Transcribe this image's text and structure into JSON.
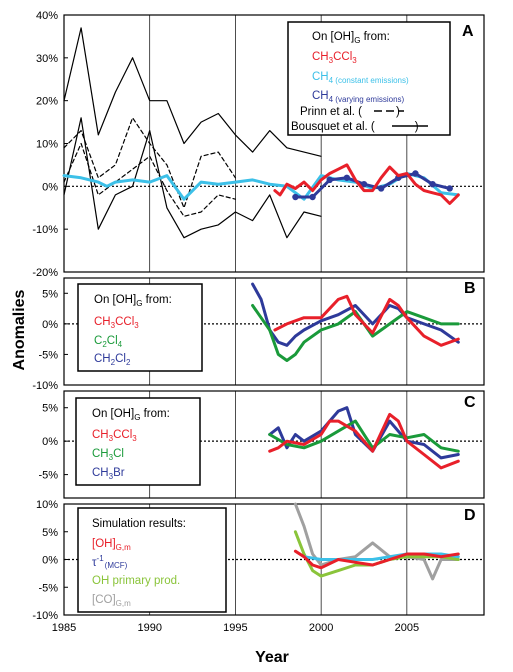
{
  "x_axis": {
    "label": "Year",
    "ticks": [
      "1985",
      "1990",
      "1995",
      "2000",
      "2005"
    ]
  },
  "y_axis": {
    "label": "Anomalies"
  },
  "colors": {
    "ch3ccl3": "#e8202a",
    "ch4_const": "#3cc0e8",
    "ch4_vary": "#2e3a9a",
    "c2cl4": "#1a9a3a",
    "ch3cl": "#1a9a3a",
    "ch2cl2": "#2e3a9a",
    "ch3br": "#2e3a9a",
    "oh_sim": "#e8202a",
    "tau_mcf": "#3cc0e8",
    "oh_primary": "#8ac43a",
    "co_sim": "#a0a0a0",
    "prinn": "#000000",
    "bousquet": "#000000"
  },
  "chart_data": [
    {
      "panel": "A",
      "type": "line",
      "ylim": [
        -20,
        40
      ],
      "y_ticks": [
        "40%",
        "30%",
        "20%",
        "10%",
        "0%",
        "-10%",
        "-20%"
      ],
      "legend": {
        "title": "On [OH]G from:",
        "entries": [
          "CH3CCl3",
          "CH4 (constant emissions)",
          "CH4 (varying emissions)",
          "Prinn et al.",
          "Bousquet et al."
        ]
      },
      "series": [
        {
          "name": "Bousquet et al. upper",
          "x": [
            1985,
            1986,
            1987,
            1988,
            1989,
            1990,
            1991,
            1992,
            1993,
            1994,
            1995,
            1996,
            1997,
            1998,
            1999,
            2000
          ],
          "y": [
            20,
            37,
            12,
            22,
            30,
            20,
            20,
            10,
            15,
            17,
            12,
            8,
            13,
            9,
            8,
            7
          ]
        },
        {
          "name": "Bousquet et al. lower",
          "x": [
            1985,
            1986,
            1987,
            1988,
            1989,
            1990,
            1991,
            1992,
            1993,
            1994,
            1995,
            1996,
            1997,
            1998,
            1999,
            2000
          ],
          "y": [
            -2,
            16,
            -10,
            -2,
            0,
            13,
            -5,
            -12,
            -10,
            -9,
            -6,
            -8,
            -2,
            -12,
            -6,
            -7
          ]
        },
        {
          "name": "Prinn et al. upper",
          "x": [
            1985,
            1986,
            1987,
            1988,
            1989,
            1990,
            1991,
            1992,
            1993,
            1994,
            1995
          ],
          "y": [
            9,
            13,
            2,
            5,
            16,
            10,
            5,
            -5,
            7,
            8,
            2
          ]
        },
        {
          "name": "Prinn et al. lower",
          "x": [
            1985,
            1986,
            1987,
            1988,
            1989,
            1990,
            1991,
            1992,
            1993,
            1994,
            1995
          ],
          "y": [
            1,
            10,
            -2,
            1,
            4,
            7,
            -1,
            -7,
            -6,
            -2,
            -3
          ]
        },
        {
          "name": "CH4 (constant emissions)",
          "x": [
            1985,
            1986,
            1987,
            1987.5,
            1988,
            1989,
            1990,
            1991,
            1992,
            1993,
            1994,
            1995,
            1996,
            1997,
            1998,
            1999,
            2000,
            2001,
            2002,
            2003,
            2004,
            2005,
            2006,
            2007,
            2008
          ],
          "y": [
            2.5,
            2,
            1,
            0,
            1,
            1.5,
            1,
            2.5,
            -3,
            1,
            0.5,
            1,
            1.5,
            0.5,
            0,
            -3,
            2.5,
            1.5,
            1,
            -0.5,
            0.5,
            3,
            2,
            -1.5,
            -2
          ]
        },
        {
          "name": "CH4 (varying emissions)",
          "x": [
            1998.5,
            1999.5,
            2000.5,
            2001.5,
            2002.5,
            2003.5,
            2004.5,
            2005.5,
            2006.5,
            2007.5
          ],
          "y": [
            -2.5,
            -2.5,
            1.5,
            2,
            0.5,
            -0.5,
            2,
            3,
            0.5,
            -0.5
          ]
        },
        {
          "name": "CH3CCl3",
          "x": [
            1997.3,
            1997.6,
            1998,
            1998.5,
            1999,
            1999.5,
            2000,
            2000.5,
            2001,
            2001.5,
            2002,
            2002.5,
            2003,
            2003.5,
            2004,
            2004.5,
            2005,
            2005.5,
            2006,
            2006.5,
            2007,
            2007.5,
            2008
          ],
          "y": [
            -1,
            -2,
            0.5,
            -0.5,
            1,
            -1,
            1.5,
            3,
            4,
            5,
            1.5,
            -1,
            -1,
            2,
            4.5,
            2.5,
            3,
            0.5,
            -1,
            -1.5,
            -2,
            -4,
            -2
          ]
        }
      ]
    },
    {
      "panel": "B",
      "type": "line",
      "ylim": [
        -10,
        7.5
      ],
      "y_ticks": [
        "5%",
        "0%",
        "-5%",
        "-10%"
      ],
      "legend": {
        "title": "On [OH]G from:",
        "entries": [
          "CH3CCl3",
          "C2Cl4",
          "CH2Cl2"
        ]
      },
      "series": [
        {
          "name": "CH2Cl2",
          "x": [
            1996,
            1996.5,
            1997,
            1997.5,
            1998,
            1998.5,
            1999,
            2000,
            2001,
            2002,
            2003,
            2004,
            2004.5,
            2005,
            2006,
            2007,
            2008
          ],
          "y": [
            6.5,
            4,
            -1,
            -3,
            -3.5,
            -2,
            -1,
            0.5,
            1.5,
            3,
            0,
            3,
            2.5,
            1,
            0,
            -1,
            -3
          ]
        },
        {
          "name": "C2Cl4",
          "x": [
            1996,
            1996.5,
            1997,
            1997.5,
            1998,
            1998.5,
            1999,
            2000,
            2001,
            2002,
            2003,
            2004,
            2005,
            2006,
            2007,
            2008
          ],
          "y": [
            3,
            1,
            -1,
            -5,
            -6,
            -5,
            -3,
            -1,
            0,
            2,
            -2,
            0,
            2,
            1,
            0,
            0
          ]
        },
        {
          "name": "CH3CCl3",
          "x": [
            1997.3,
            1998,
            1999,
            2000,
            2001,
            2001.5,
            2002,
            2003,
            2004,
            2004.5,
            2005,
            2006,
            2007,
            2008
          ],
          "y": [
            -1,
            0,
            1,
            1,
            4,
            4.5,
            1.5,
            -1.5,
            4,
            3,
            1,
            -2,
            -3.5,
            -2.5
          ]
        }
      ]
    },
    {
      "panel": "C",
      "type": "line",
      "ylim": [
        -8.5,
        7.5
      ],
      "y_ticks": [
        "5%",
        "0%",
        "-5%"
      ],
      "legend": {
        "title": "On [OH]G from:",
        "entries": [
          "CH3CCl3",
          "CH3Cl",
          "CH3Br"
        ]
      },
      "series": [
        {
          "name": "CH3Br",
          "x": [
            1997,
            1997.5,
            1998,
            1998.5,
            1999,
            2000,
            2001,
            2001.5,
            2002,
            2003,
            2004,
            2005,
            2006,
            2007,
            2008
          ],
          "y": [
            1,
            2,
            -1,
            1,
            0,
            1.5,
            4.5,
            5,
            1,
            -1.5,
            3,
            0,
            -0.5,
            -2.5,
            -2
          ]
        },
        {
          "name": "CH3Cl",
          "x": [
            1997,
            1998,
            1999,
            2000,
            2001,
            2002,
            2003,
            2004,
            2005,
            2006,
            2007,
            2008
          ],
          "y": [
            1,
            -0.5,
            -1,
            0,
            1.5,
            3,
            -1,
            1,
            0.5,
            1,
            -1,
            -1.5
          ]
        },
        {
          "name": "CH3CCl3",
          "x": [
            1997,
            1997.5,
            1998,
            1999,
            2000,
            2000.5,
            2001,
            2002,
            2003,
            2004,
            2004.5,
            2005,
            2006,
            2007,
            2008
          ],
          "y": [
            -1.5,
            -1,
            0,
            -0.5,
            1,
            3,
            3,
            1.5,
            -1.5,
            4,
            3,
            0,
            -2,
            -4,
            -3
          ]
        }
      ]
    },
    {
      "panel": "D",
      "type": "line",
      "ylim": [
        -10,
        10
      ],
      "y_ticks": [
        "10%",
        "5%",
        "0%",
        "-5%",
        "-10%"
      ],
      "legend": {
        "title": "Simulation results:",
        "entries": [
          "[OH]G,m",
          "τ-1 (MCF)",
          "OH primary prod.",
          "[CO]G,m"
        ]
      },
      "series": [
        {
          "name": "[CO]G,m",
          "x": [
            1998.5,
            1999,
            1999.5,
            2000,
            2001,
            2002,
            2003,
            2004,
            2005,
            2006,
            2006.5,
            2007,
            2008
          ],
          "y": [
            10,
            6,
            1,
            -1,
            0,
            0.5,
            3,
            0.5,
            0.5,
            0,
            -3.5,
            0,
            0
          ]
        },
        {
          "name": "OH primary prod.",
          "x": [
            1998.5,
            1999,
            1999.5,
            2000,
            2001,
            2002,
            2003,
            2004,
            2005,
            2006,
            2007,
            2008
          ],
          "y": [
            5,
            1,
            -2,
            -3,
            -2,
            -1,
            -1,
            0,
            0.5,
            0.5,
            0.5,
            0
          ]
        },
        {
          "name": "τ-1 (MCF)",
          "x": [
            1999,
            2000,
            2001,
            2002,
            2003,
            2004,
            2005,
            2006,
            2007,
            2008
          ],
          "y": [
            0.5,
            0,
            0,
            0,
            0,
            0.5,
            1,
            1,
            1,
            0.5
          ]
        },
        {
          "name": "[OH]G,m",
          "x": [
            1998.5,
            1999,
            1999.5,
            2000,
            2001,
            2002,
            2003,
            2004,
            2005,
            2006,
            2007,
            2008
          ],
          "y": [
            1.5,
            0.5,
            -1,
            -1.5,
            0,
            -0.5,
            -1,
            0,
            1,
            1,
            0.5,
            1
          ]
        }
      ]
    }
  ],
  "legends": {
    "a": {
      "title_prefix": "On [OH]",
      "title_sub": "G",
      "title_suffix": " from:",
      "e1_main": "CH",
      "e1_s1": "3",
      "e1_mid": "CCl",
      "e1_s2": "3",
      "e2_main": "CH",
      "e2_s1": "4",
      "e2_note": " (constant emissions)",
      "e3_main": "CH",
      "e3_s1": "4",
      "e3_note": " (varying emissions)",
      "e4": "Prinn et al. (",
      "e4_close": ")",
      "e5": "Bousquet et al. (",
      "e5_close": ")"
    },
    "b": {
      "title_prefix": "On [OH]",
      "title_sub": "G",
      "title_suffix": " from:",
      "e1_main": "CH",
      "e1_s1": "3",
      "e1_mid": "CCl",
      "e1_s2": "3",
      "e2_main": "C",
      "e2_s1": "2",
      "e2_mid": "Cl",
      "e2_s2": "4",
      "e3_main": "CH",
      "e3_s1": "2",
      "e3_mid": "Cl",
      "e3_s2": "2"
    },
    "c": {
      "title_prefix": "On [OH]",
      "title_sub": "G",
      "title_suffix": " from:",
      "e1_main": "CH",
      "e1_s1": "3",
      "e1_mid": "CCl",
      "e1_s2": "3",
      "e2_main": "CH",
      "e2_s1": "3",
      "e2_mid": "Cl",
      "e3_main": "CH",
      "e3_s1": "3",
      "e3_mid": "Br"
    },
    "d": {
      "title": "Simulation results:",
      "e1_main": "[OH]",
      "e1_sub": "G,m",
      "e2_main": "τ",
      "e2_sup": "-1",
      "e2_sub": "(MCF)",
      "e3": "OH primary prod.",
      "e4_main": "[CO]",
      "e4_sub": "G,m"
    }
  },
  "panel_labels": [
    "A",
    "B",
    "C",
    "D"
  ]
}
